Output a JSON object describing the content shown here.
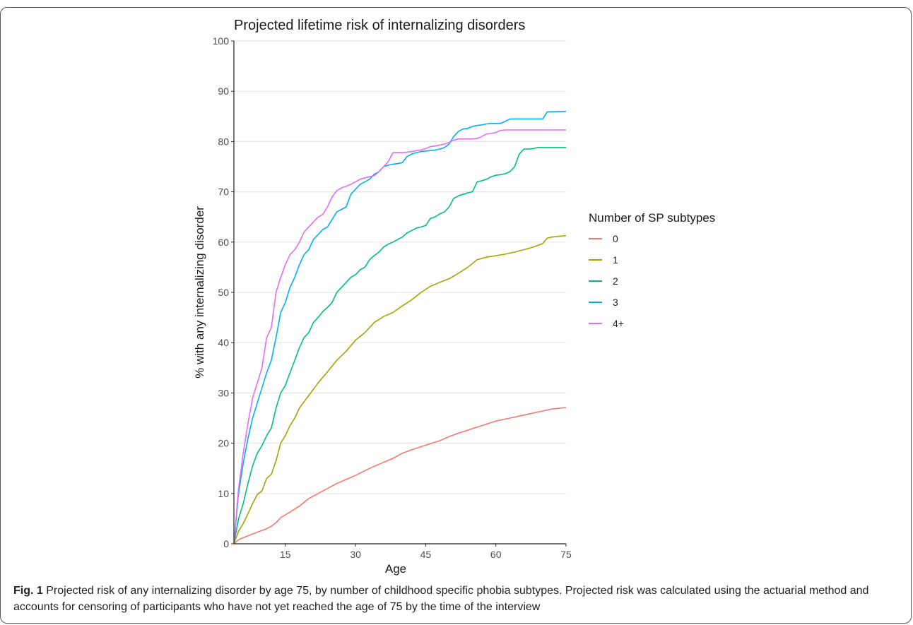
{
  "figure": {
    "caption_label": "Fig. 1",
    "caption_text": "Projected risk of any internalizing disorder by age 75, by number of childhood specific phobia subtypes. Projected risk was calculated using the actuarial method and accounts for censoring of participants who have not yet reached the age of 75 by the time of the interview"
  },
  "chart_data": {
    "type": "line",
    "title": "Projected lifetime risk of internalizing disorders",
    "xlabel": "Age",
    "ylabel": "% with any internalizing disorder",
    "xlim": [
      4,
      75
    ],
    "ylim": [
      0,
      100
    ],
    "x_ticks": [
      15,
      30,
      45,
      60,
      75
    ],
    "y_ticks": [
      0,
      10,
      20,
      30,
      40,
      50,
      60,
      70,
      80,
      90,
      100
    ],
    "grid": "horizontal",
    "legend_title": "Number of SP subtypes",
    "legend_position": "right",
    "series": [
      {
        "name": "0",
        "color": "#F8766D",
        "points": [
          [
            4,
            0
          ],
          [
            5,
            0.8
          ],
          [
            7,
            1.6
          ],
          [
            9,
            2.3
          ],
          [
            11,
            3
          ],
          [
            12,
            3.5
          ],
          [
            13,
            4.2
          ],
          [
            14,
            5.2
          ],
          [
            16,
            6.3
          ],
          [
            18,
            7.5
          ],
          [
            20,
            9
          ],
          [
            22,
            10
          ],
          [
            24,
            11
          ],
          [
            26,
            12
          ],
          [
            28,
            12.8
          ],
          [
            30,
            13.6
          ],
          [
            33,
            15
          ],
          [
            36,
            16.2
          ],
          [
            38,
            17
          ],
          [
            40,
            18
          ],
          [
            42,
            18.7
          ],
          [
            45,
            19.6
          ],
          [
            48,
            20.5
          ],
          [
            50,
            21.3
          ],
          [
            52,
            22
          ],
          [
            54,
            22.6
          ],
          [
            56,
            23.2
          ],
          [
            58,
            23.8
          ],
          [
            60,
            24.4
          ],
          [
            62,
            24.8
          ],
          [
            64,
            25.2
          ],
          [
            66,
            25.6
          ],
          [
            68,
            26
          ],
          [
            70,
            26.4
          ],
          [
            72,
            26.8
          ],
          [
            75,
            27.1
          ]
        ]
      },
      {
        "name": "1",
        "color": "#A3A500",
        "points": [
          [
            4,
            0
          ],
          [
            5,
            2.5
          ],
          [
            6,
            4
          ],
          [
            7,
            6
          ],
          [
            8,
            8
          ],
          [
            9,
            9.8
          ],
          [
            10,
            10.5
          ],
          [
            11,
            13
          ],
          [
            12,
            13.8
          ],
          [
            13,
            16.5
          ],
          [
            14,
            20
          ],
          [
            15,
            21.5
          ],
          [
            16,
            23.5
          ],
          [
            17,
            25
          ],
          [
            18,
            27
          ],
          [
            20,
            29.5
          ],
          [
            22,
            32
          ],
          [
            24,
            34.2
          ],
          [
            26,
            36.5
          ],
          [
            28,
            38.3
          ],
          [
            30,
            40.5
          ],
          [
            32,
            42
          ],
          [
            34,
            44
          ],
          [
            36,
            45.2
          ],
          [
            38,
            46
          ],
          [
            40,
            47.3
          ],
          [
            42,
            48.5
          ],
          [
            44,
            50
          ],
          [
            46,
            51.2
          ],
          [
            48,
            52
          ],
          [
            50,
            52.7
          ],
          [
            52,
            53.8
          ],
          [
            54,
            55
          ],
          [
            56,
            56.5
          ],
          [
            58,
            57
          ],
          [
            60,
            57.3
          ],
          [
            62,
            57.6
          ],
          [
            64,
            58
          ],
          [
            66,
            58.5
          ],
          [
            68,
            59
          ],
          [
            70,
            59.7
          ],
          [
            71,
            60.8
          ],
          [
            72,
            61
          ],
          [
            74,
            61.2
          ],
          [
            75,
            61.3
          ]
        ]
      },
      {
        "name": "2",
        "color": "#00BF7D",
        "points": [
          [
            4,
            0
          ],
          [
            5,
            5
          ],
          [
            6,
            8
          ],
          [
            7,
            12
          ],
          [
            8,
            15.5
          ],
          [
            9,
            18
          ],
          [
            10,
            19.5
          ],
          [
            11,
            21.5
          ],
          [
            12,
            23
          ],
          [
            13,
            27
          ],
          [
            14,
            30
          ],
          [
            15,
            31.5
          ],
          [
            16,
            34
          ],
          [
            17,
            36.5
          ],
          [
            18,
            39
          ],
          [
            19,
            41
          ],
          [
            20,
            42
          ],
          [
            21,
            44
          ],
          [
            22,
            45
          ],
          [
            23,
            46.2
          ],
          [
            24,
            47
          ],
          [
            25,
            48
          ],
          [
            26,
            50
          ],
          [
            27,
            51
          ],
          [
            28,
            52
          ],
          [
            29,
            53
          ],
          [
            30,
            53.5
          ],
          [
            31,
            54.5
          ],
          [
            32,
            55
          ],
          [
            33,
            56.5
          ],
          [
            34,
            57.3
          ],
          [
            35,
            58
          ],
          [
            36,
            59
          ],
          [
            37,
            59.6
          ],
          [
            38,
            60
          ],
          [
            39,
            60.5
          ],
          [
            40,
            61
          ],
          [
            41,
            61.8
          ],
          [
            42,
            62.3
          ],
          [
            43,
            62.8
          ],
          [
            44,
            63
          ],
          [
            45,
            63.3
          ],
          [
            46,
            64.7
          ],
          [
            47,
            65
          ],
          [
            48,
            65.6
          ],
          [
            49,
            66
          ],
          [
            50,
            67
          ],
          [
            51,
            68.7
          ],
          [
            52,
            69.2
          ],
          [
            53,
            69.5
          ],
          [
            54,
            69.8
          ],
          [
            55,
            70
          ],
          [
            56,
            72
          ],
          [
            57,
            72.2
          ],
          [
            58,
            72.5
          ],
          [
            59,
            73
          ],
          [
            60,
            73.3
          ],
          [
            61,
            73.4
          ],
          [
            62,
            73.6
          ],
          [
            63,
            74
          ],
          [
            64,
            75
          ],
          [
            65,
            77.5
          ],
          [
            66,
            78.5
          ],
          [
            67,
            78.5
          ],
          [
            68,
            78.6
          ],
          [
            69,
            78.8
          ],
          [
            75,
            78.8
          ]
        ]
      },
      {
        "name": "3",
        "color": "#00B0F6",
        "points": [
          [
            4,
            0
          ],
          [
            5,
            10
          ],
          [
            6,
            16
          ],
          [
            7,
            21
          ],
          [
            8,
            25
          ],
          [
            9,
            28
          ],
          [
            10,
            31
          ],
          [
            11,
            34
          ],
          [
            12,
            36.5
          ],
          [
            13,
            41
          ],
          [
            14,
            46
          ],
          [
            15,
            48
          ],
          [
            16,
            51
          ],
          [
            17,
            53
          ],
          [
            18,
            55.5
          ],
          [
            19,
            57.5
          ],
          [
            20,
            58.5
          ],
          [
            21,
            60.5
          ],
          [
            22,
            61.5
          ],
          [
            23,
            62.5
          ],
          [
            24,
            63
          ],
          [
            25,
            64.5
          ],
          [
            26,
            66
          ],
          [
            27,
            66.5
          ],
          [
            28,
            67
          ],
          [
            29,
            69.5
          ],
          [
            30,
            70.5
          ],
          [
            31,
            71.5
          ],
          [
            32,
            72
          ],
          [
            33,
            72.5
          ],
          [
            34,
            73.5
          ],
          [
            35,
            74
          ],
          [
            36,
            75
          ],
          [
            37,
            75.3
          ],
          [
            38,
            75.5
          ],
          [
            39,
            75.6
          ],
          [
            40,
            75.8
          ],
          [
            41,
            77
          ],
          [
            42,
            77.5
          ],
          [
            43,
            77.8
          ],
          [
            44,
            78
          ],
          [
            45,
            78.1
          ],
          [
            46,
            78.2
          ],
          [
            47,
            78.3
          ],
          [
            48,
            78.5
          ],
          [
            49,
            78.8
          ],
          [
            50,
            79.5
          ],
          [
            51,
            81
          ],
          [
            52,
            82
          ],
          [
            53,
            82.5
          ],
          [
            54,
            82.6
          ],
          [
            55,
            83
          ],
          [
            56,
            83.2
          ],
          [
            57,
            83.3
          ],
          [
            58,
            83.5
          ],
          [
            59,
            83.6
          ],
          [
            60,
            83.6
          ],
          [
            61,
            83.6
          ],
          [
            62,
            84
          ],
          [
            63,
            84.5
          ],
          [
            64,
            84.5
          ],
          [
            69,
            84.5
          ],
          [
            70,
            84.5
          ],
          [
            71,
            85.9
          ],
          [
            75,
            86
          ]
        ]
      },
      {
        "name": "4+",
        "color": "#E76BF3",
        "points": [
          [
            4,
            0
          ],
          [
            5,
            11
          ],
          [
            6,
            18
          ],
          [
            7,
            24
          ],
          [
            8,
            29
          ],
          [
            9,
            32
          ],
          [
            10,
            35
          ],
          [
            11,
            41
          ],
          [
            12,
            43
          ],
          [
            13,
            50
          ],
          [
            14,
            53
          ],
          [
            15,
            55.5
          ],
          [
            16,
            57.5
          ],
          [
            17,
            58.5
          ],
          [
            18,
            60
          ],
          [
            19,
            62
          ],
          [
            20,
            63
          ],
          [
            21,
            64
          ],
          [
            22,
            65
          ],
          [
            23,
            65.5
          ],
          [
            24,
            67
          ],
          [
            25,
            69
          ],
          [
            26,
            70.2
          ],
          [
            27,
            70.8
          ],
          [
            28,
            71.1
          ],
          [
            29,
            71.5
          ],
          [
            30,
            72
          ],
          [
            31,
            72.5
          ],
          [
            32,
            72.8
          ],
          [
            33,
            73
          ],
          [
            34,
            73.2
          ],
          [
            35,
            74
          ],
          [
            36,
            75
          ],
          [
            37,
            76
          ],
          [
            38,
            77.8
          ],
          [
            39,
            77.8
          ],
          [
            40,
            77.8
          ],
          [
            41,
            77.9
          ],
          [
            42,
            78
          ],
          [
            43,
            78.2
          ],
          [
            44,
            78.3
          ],
          [
            45,
            78.6
          ],
          [
            46,
            79
          ],
          [
            47,
            79.1
          ],
          [
            48,
            79.3
          ],
          [
            49,
            79.5
          ],
          [
            50,
            79.8
          ],
          [
            51,
            80.3
          ],
          [
            52,
            80.5
          ],
          [
            53,
            80.5
          ],
          [
            54,
            80.5
          ],
          [
            55,
            80.5
          ],
          [
            56,
            80.6
          ],
          [
            57,
            81
          ],
          [
            58,
            81.5
          ],
          [
            59,
            81.6
          ],
          [
            60,
            81.8
          ],
          [
            61,
            82.2
          ],
          [
            62,
            82.3
          ],
          [
            75,
            82.3
          ]
        ]
      }
    ]
  }
}
